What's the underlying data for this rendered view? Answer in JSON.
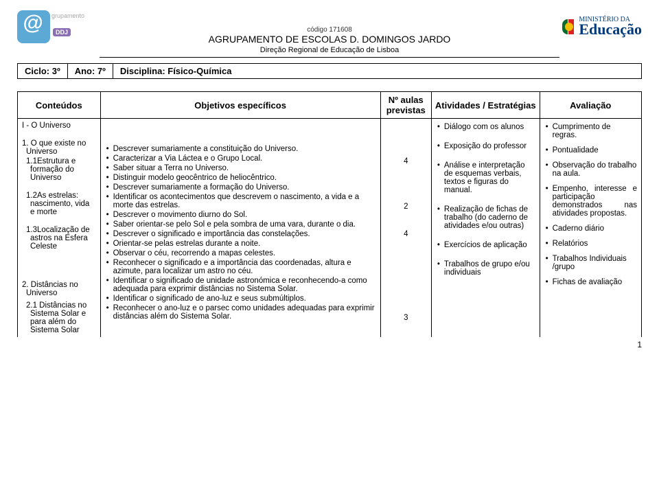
{
  "header": {
    "codigo": "código 171608",
    "agr_pre": "AGRUPAMENTO DE ",
    "agr_esc": "ESCOLAS ",
    "agr_d": "D. D",
    "agr_rest": "OMINGOS ",
    "agr_j": "J",
    "agr_ardo": "ARDO",
    "direc": "Direção Regional de Educação de Lisboa",
    "me_sup": "MINISTÉRIO DA",
    "me_main": "Educação",
    "grup": "grupamento",
    "ddj": "DDJ"
  },
  "info": {
    "ciclo": "Ciclo: 3º",
    "ano": "Ano: 7º",
    "disc": "Disciplina: Físico-Química"
  },
  "cols": {
    "c1": "Conteúdos",
    "c2": "Objetivos específicos",
    "c3": "Nº aulas previstas",
    "c4": "Atividades / Estratégias",
    "c5": "Avaliação"
  },
  "conteudos": {
    "sec1": "I - O Universo",
    "i1": "1. O que existe no Universo",
    "i1_1": "1.1Estrutura e formação do Universo",
    "i1_2": "1.2As estrelas: nascimento, vida e morte",
    "i1_3": "1.3Localização de astros na Esfera Celeste",
    "i2": "2. Distâncias no Universo",
    "i2_1": "2.1 Distâncias no Sistema Solar e para além do Sistema Solar"
  },
  "obj": {
    "b1": [
      "Descrever sumariamente a constituição do Universo.",
      "Caracterizar a Via Láctea e o Grupo Local.",
      "Saber situar a Terra no Universo.",
      "Distinguir modelo geocêntrico de heliocêntrico.",
      "Descrever sumariamente a formação do Universo."
    ],
    "b2": [
      "Identificar os acontecimentos que descrevem o nascimento, a vida e a morte das estrelas."
    ],
    "b3": [
      "Descrever o movimento diurno do Sol.",
      "Saber orientar-se pelo Sol e pela sombra de uma vara, durante o dia.",
      "Descrever o significado e importância das constelações.",
      "Orientar-se pelas estrelas durante a noite.",
      "Observar o céu, recorrendo a mapas celestes.",
      "Reconhecer o significado e a importância das coordenadas, altura e azimute, para localizar um astro no céu."
    ],
    "b4": [
      "Identificar o significado de unidade astronómica e reconhecendo-a como adequada para exprimir distâncias no Sistema Solar.",
      "Identificar o significado de ano-luz e seus submúltiplos.",
      "Reconhecer o ano-luz e o parsec como unidades adequadas para exprimir distâncias além do Sistema Solar."
    ]
  },
  "aulas": {
    "a1": "4",
    "a2": "2",
    "a3": "4",
    "a4": "3"
  },
  "ativ": [
    "Diálogo com os alunos",
    "Exposição do professor",
    "Análise e interpretação de esquemas verbais, textos e figuras do manual.",
    "Realização de fichas de trabalho (do caderno de atividades e/ou outras)",
    "Exercícios de aplicação",
    "Trabalhos de grupo e/ou individuais"
  ],
  "aval": [
    "Cumprimento de regras.",
    "Pontualidade",
    "Observação do trabalho na aula.",
    "Empenho, interesse e participação demonstrados nas atividades propostas.",
    "Caderno diário",
    "Relatórios",
    "Trabalhos Individuais /grupo",
    "Fichas de avaliação"
  ],
  "pagenum": "1"
}
